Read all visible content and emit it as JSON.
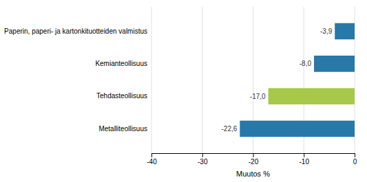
{
  "chart_data": {
    "type": "bar",
    "orientation": "horizontal",
    "categories": [
      "Metalliteollisuus",
      "Tehdasteollisuus",
      "Kemianteollisuus",
      "Paperin, paperi- ja kartonkituotteiden valmistus"
    ],
    "values": [
      -22.6,
      -17.0,
      -8.0,
      -3.9
    ],
    "value_labels": [
      "-22,6",
      "-17,0",
      "-8,0",
      "-3,9"
    ],
    "data_labels": true,
    "colors": [
      "#2878a8",
      "#a8c84a",
      "#2878a8",
      "#2878a8"
    ],
    "xlabel": "Muutos %",
    "xlim": [
      -40,
      0
    ],
    "xticks": [
      -40,
      -30,
      -20,
      -10,
      0
    ],
    "grid": true
  }
}
